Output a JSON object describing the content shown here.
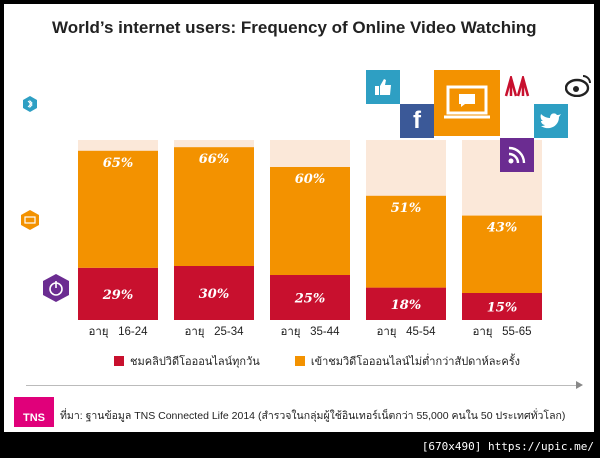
{
  "title": "World’s internet users:  Frequency of Online Video Watching",
  "chart_data": {
    "type": "bar",
    "stacked": true,
    "categories": [
      "อายุ   16-24",
      "อายุ   25-34",
      "อายุ   35-44",
      "อายุ   45-54",
      "อายุ   55-65"
    ],
    "series": [
      {
        "name": "ชมคลิปวิดีโอออนไลน์ทุกวัน",
        "values": [
          29,
          30,
          25,
          18,
          15
        ],
        "labels": [
          "29%",
          "30%",
          "25%",
          "18%",
          "15%"
        ],
        "color": "#c8102e"
      },
      {
        "name": "เข้าชมวิดีโอออนไลน์ไม่ต่ำกว่าสัปดาห์ละครั้ง",
        "values": [
          65,
          66,
          60,
          51,
          43
        ],
        "labels": [
          "65%",
          "66%",
          "60%",
          "51%",
          "43%"
        ],
        "color": "#f39200"
      }
    ],
    "background_color": "#fbe8d9",
    "ylim": [
      0,
      100
    ],
    "grid": false,
    "legend": "bottom"
  },
  "side_icons": [
    {
      "name": "bluetooth-icon",
      "color": "#2e9fc3"
    },
    {
      "name": "monitor-icon",
      "color": "#f39200"
    },
    {
      "name": "power-icon",
      "color": "#6b2c91"
    }
  ],
  "social_icons": [
    {
      "name": "thumbs-up-icon",
      "color": "#2e9fc3"
    },
    {
      "name": "facebook-icon",
      "color": "#3b5998",
      "glyph": "f"
    },
    {
      "name": "video-screen-icon",
      "color": "#f39200"
    },
    {
      "name": "network-logo-icon",
      "color": "#ffffff"
    },
    {
      "name": "weibo-icon",
      "color": "#ffffff"
    },
    {
      "name": "twitter-icon",
      "color": "#2e9fc3"
    },
    {
      "name": "rss-icon",
      "color": "#6b2c91"
    }
  ],
  "source": {
    "logo_text": "TNS",
    "text": "ที่มา: ฐานข้อมูล TNS Connected Life 2014 (สำรวจในกลุ่มผู้ใช้อินเทอร์เน็ตกว่า   55,000 คนใน   50 ประเทศทั่วโลก)"
  },
  "watermark": "[670x490] https://upic.me/"
}
